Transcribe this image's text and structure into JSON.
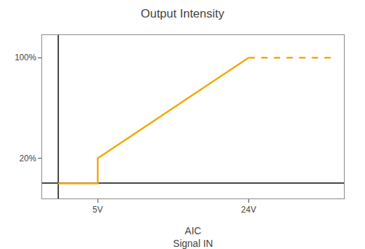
{
  "chart_data": {
    "type": "line",
    "title": "Output Intensity",
    "xlabel": "AIC\nSignal IN",
    "series": [
      {
        "x": [
          0,
          5,
          5,
          24
        ],
        "values": [
          0,
          0,
          20,
          100
        ],
        "color": "#F5A800",
        "line_style": "solid"
      },
      {
        "x": [
          24,
          35
        ],
        "values": [
          100,
          100
        ],
        "color": "#F5A800",
        "line_style": "dashed"
      }
    ],
    "xlim": [
      -2,
      36
    ],
    "ylim": [
      -12,
      118
    ],
    "xticks": [
      {
        "value": 5,
        "label": "5V"
      },
      {
        "value": 24,
        "label": "24V"
      }
    ],
    "yticks": [
      {
        "value": 20,
        "label": "20%"
      },
      {
        "value": 100,
        "label": "100%"
      }
    ],
    "grid": false
  }
}
